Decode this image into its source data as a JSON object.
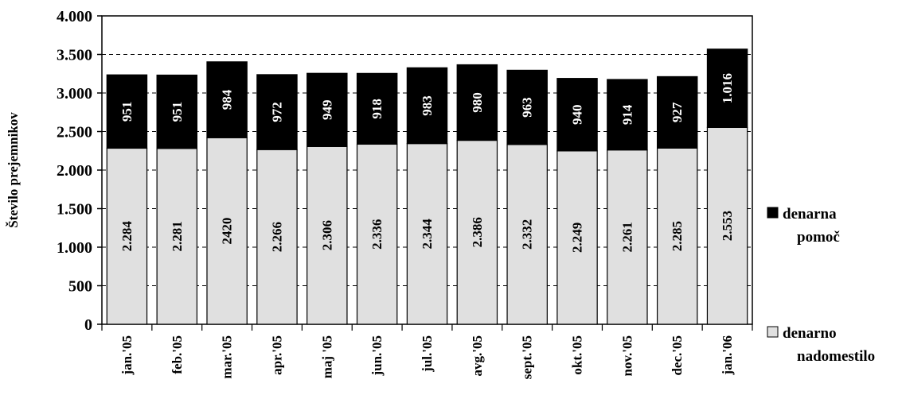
{
  "chart_data": {
    "type": "bar",
    "stacked": true,
    "title": "",
    "xlabel": "",
    "ylabel": "Število prejemnikov",
    "ylim": [
      0,
      4000
    ],
    "yticks": [
      0,
      500,
      1000,
      1500,
      2000,
      2500,
      3000,
      3500,
      4000
    ],
    "ytick_labels": [
      "0",
      "500",
      "1.000",
      "1.500",
      "2.000",
      "2.500",
      "3.000",
      "3.500",
      "4.000"
    ],
    "grid": "horizontal dashed",
    "legend_position": "right",
    "categories": [
      "jan.'05",
      "feb.'05",
      "mar.'05",
      "apr.'05",
      "maj '05",
      "jun.'05",
      "jul.'05",
      "avg.'05",
      "sept.'05",
      "okt.'05",
      "nov.'05",
      "dec.'05",
      "jan.'06"
    ],
    "series": [
      {
        "name": "denarno nadomestilo",
        "color": "#e0e0e0",
        "values": [
          2284,
          2281,
          2420,
          2266,
          2306,
          2336,
          2344,
          2386,
          2332,
          2249,
          2261,
          2285,
          2553
        ],
        "labels": [
          "2.284",
          "2.281",
          "2420",
          "2.266",
          "2.306",
          "2.336",
          "2.344",
          "2.386",
          "2.332",
          "2.249",
          "2.261",
          "2.285",
          "2.553"
        ]
      },
      {
        "name": "denarna pomoč",
        "color": "#000000",
        "values": [
          951,
          951,
          984,
          972,
          949,
          918,
          983,
          980,
          963,
          940,
          914,
          927,
          1016
        ],
        "labels": [
          "951",
          "951",
          "984",
          "972",
          "949",
          "918",
          "983",
          "980",
          "963",
          "940",
          "914",
          "927",
          "1.016"
        ]
      }
    ],
    "legend": [
      {
        "series": 1,
        "lines": [
          "denarna",
          "pomoč"
        ]
      },
      {
        "series": 0,
        "lines": [
          "denarno",
          "nadomestilo"
        ]
      }
    ]
  }
}
